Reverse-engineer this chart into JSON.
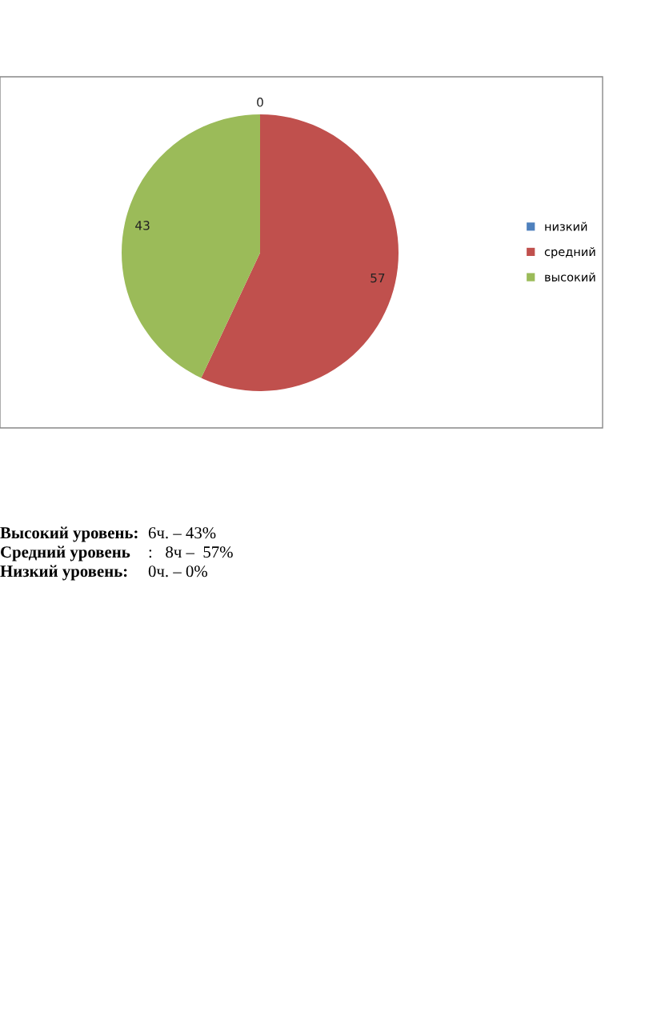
{
  "chart_data": {
    "type": "pie",
    "categories": [
      "низкий",
      "средний",
      "высокий"
    ],
    "values": [
      0,
      57,
      43
    ],
    "colors": [
      "#4f81bd",
      "#c0504d",
      "#9bbb59"
    ],
    "value_labels": [
      "0",
      "57",
      "43"
    ],
    "legend": "right",
    "annotations": [
      "Высокий уровень:",
      "6ч. – 43%",
      "Средний уровень",
      ":   8ч –  57%",
      "Низкий уровень:",
      "0ч. – 0%"
    ]
  }
}
